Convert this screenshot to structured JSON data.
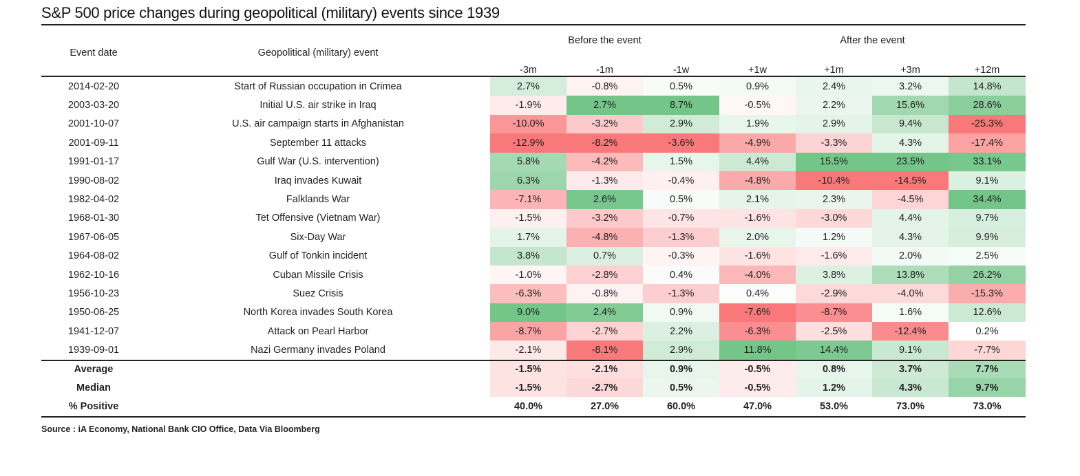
{
  "title": "S&P 500 price changes during geopolitical (military) events since 1939",
  "headers": {
    "event_date": "Event date",
    "event": "Geopolitical (military) event",
    "before": "Before the event",
    "after": "After the event",
    "periods": [
      "-3m",
      "-1m",
      "-1w",
      "+1w",
      "+1m",
      "+3m",
      "+12m"
    ]
  },
  "colors": {
    "positive": "#63be7b",
    "negative": "#f8696b",
    "neutral": "#ffffff"
  },
  "chart_data": {
    "type": "table",
    "title": "S&P 500 price changes during geopolitical (military) events since 1939",
    "columns": [
      "-3m",
      "-1m",
      "-1w",
      "+1w",
      "+1m",
      "+3m",
      "+12m"
    ],
    "unit": "%",
    "rows": [
      {
        "date": "2014-02-20",
        "event": "Start of Russian occupation in Crimea",
        "values": [
          2.7,
          -0.8,
          0.5,
          0.9,
          2.4,
          3.2,
          14.8
        ]
      },
      {
        "date": "2003-03-20",
        "event": "Initial U.S. air strike in Iraq",
        "values": [
          -1.9,
          2.7,
          8.7,
          -0.5,
          2.2,
          15.6,
          28.6
        ]
      },
      {
        "date": "2001-10-07",
        "event": "U.S. air campaign starts in Afghanistan",
        "values": [
          -10.0,
          -3.2,
          2.9,
          1.9,
          2.9,
          9.4,
          -25.3
        ]
      },
      {
        "date": "2001-09-11",
        "event": "September 11 attacks",
        "values": [
          -12.9,
          -8.2,
          -3.6,
          -4.9,
          -3.3,
          4.3,
          -17.4
        ]
      },
      {
        "date": "1991-01-17",
        "event": "Gulf War (U.S. intervention)",
        "values": [
          5.8,
          -4.2,
          1.5,
          4.4,
          15.5,
          23.5,
          33.1
        ]
      },
      {
        "date": "1990-08-02",
        "event": "Iraq invades Kuwait",
        "values": [
          6.3,
          -1.3,
          -0.4,
          -4.8,
          -10.4,
          -14.5,
          9.1
        ]
      },
      {
        "date": "1982-04-02",
        "event": "Falklands War",
        "values": [
          -7.1,
          2.6,
          0.5,
          2.1,
          2.3,
          -4.5,
          34.4
        ]
      },
      {
        "date": "1968-01-30",
        "event": "Tet Offensive (Vietnam War)",
        "values": [
          -1.5,
          -3.2,
          -0.7,
          -1.6,
          -3.0,
          4.4,
          9.7
        ]
      },
      {
        "date": "1967-06-05",
        "event": "Six-Day War",
        "values": [
          1.7,
          -4.8,
          -1.3,
          2.0,
          1.2,
          4.3,
          9.9
        ]
      },
      {
        "date": "1964-08-02",
        "event": "Gulf of Tonkin incident",
        "values": [
          3.8,
          0.7,
          -0.3,
          -1.6,
          -1.6,
          2.0,
          2.5
        ]
      },
      {
        "date": "1962-10-16",
        "event": "Cuban Missile Crisis",
        "values": [
          -1.0,
          -2.8,
          0.4,
          -4.0,
          3.8,
          13.8,
          26.2
        ]
      },
      {
        "date": "1956-10-23",
        "event": "Suez Crisis",
        "values": [
          -6.3,
          -0.8,
          -1.3,
          0.4,
          -2.9,
          -4.0,
          -15.3
        ]
      },
      {
        "date": "1950-06-25",
        "event": "North Korea invades South Korea",
        "values": [
          9.0,
          2.4,
          0.9,
          -7.6,
          -8.7,
          1.6,
          12.6
        ]
      },
      {
        "date": "1941-12-07",
        "event": "Attack on Pearl Harbor",
        "values": [
          -8.7,
          -2.7,
          2.2,
          -6.3,
          -2.5,
          -12.4,
          0.2
        ]
      },
      {
        "date": "1939-09-01",
        "event": "Nazi Germany invades Poland",
        "values": [
          -2.1,
          -8.1,
          2.9,
          11.8,
          14.4,
          9.1,
          -7.7
        ]
      }
    ],
    "summary": [
      {
        "label": "Average",
        "values": [
          -1.5,
          -2.1,
          0.9,
          -0.5,
          0.8,
          3.7,
          7.7
        ],
        "colored": true
      },
      {
        "label": "Median",
        "values": [
          -1.5,
          -2.7,
          0.5,
          -0.5,
          1.2,
          4.3,
          9.7
        ],
        "colored": true
      },
      {
        "label": "% Positive",
        "values": [
          40.0,
          27.0,
          60.0,
          47.0,
          53.0,
          73.0,
          73.0
        ],
        "colored": false
      }
    ]
  },
  "source": "Source : iA Economy, National Bank CIO Office, Data Via Bloomberg"
}
